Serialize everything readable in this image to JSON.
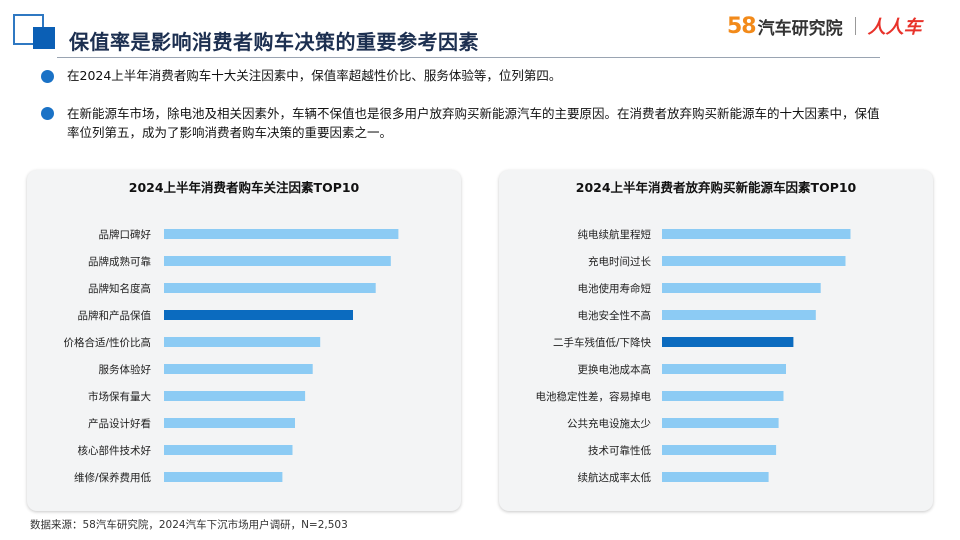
{
  "header": {
    "title": "保值率是影响消费者购车决策的重要参考因素",
    "logo_58": "58",
    "logo_text": "汽车研究院",
    "logo_renren": "人人车"
  },
  "bullets": [
    {
      "text": "在2024上半年消费者购车十大关注因素中，保值率超越性价比、服务体验等，位列第四。"
    },
    {
      "text": "在新能源车市场，除电池及相关因素外，车辆不保值也是很多用户放弃购买新能源汽车的主要原因。在消费者放弃购买新能源车的十大因素中，保值率位列第五，成为了影响消费者购车决策的重要因素之一。"
    }
  ],
  "colors": {
    "bar": "#8ccbf4",
    "highlight": "#0b6bbf"
  },
  "chart_data": [
    {
      "type": "bar",
      "orientation": "horizontal",
      "title": "2024上半年消费者购车关注因素TOP10",
      "categories": [
        "品牌口碑好",
        "品牌成熟可靠",
        "品牌知名度高",
        "品牌和产品保值",
        "价格合适/性价比高",
        "服务体验好",
        "市场保有量大",
        "产品设计好看",
        "核心部件技术好",
        "维修/保养费用低"
      ],
      "values": [
        93,
        90,
        84,
        75,
        62,
        59,
        56,
        52,
        51,
        47
      ],
      "highlight_index": 3,
      "xlim": [
        0,
        100
      ],
      "grid": false,
      "legend": "none"
    },
    {
      "type": "bar",
      "orientation": "horizontal",
      "title": "2024上半年消费者放弃购买新能源车因素TOP10",
      "categories": [
        "纯电续航里程短",
        "充电时间过长",
        "电池使用寿命短",
        "电池安全性不高",
        "二手车残值低/下降快",
        "更换电池成本高",
        "电池稳定性差，容易掉电",
        "公共充电设施太少",
        "技术可靠性低",
        "续航达成率太低"
      ],
      "values": [
        76,
        74,
        64,
        62,
        53,
        50,
        49,
        47,
        46,
        43
      ],
      "highlight_index": 4,
      "xlim": [
        0,
        100
      ],
      "grid": false,
      "legend": "none"
    }
  ],
  "source_note": "数据来源：58汽车研究院，2024汽车下沉市场用户调研，N=2,503"
}
